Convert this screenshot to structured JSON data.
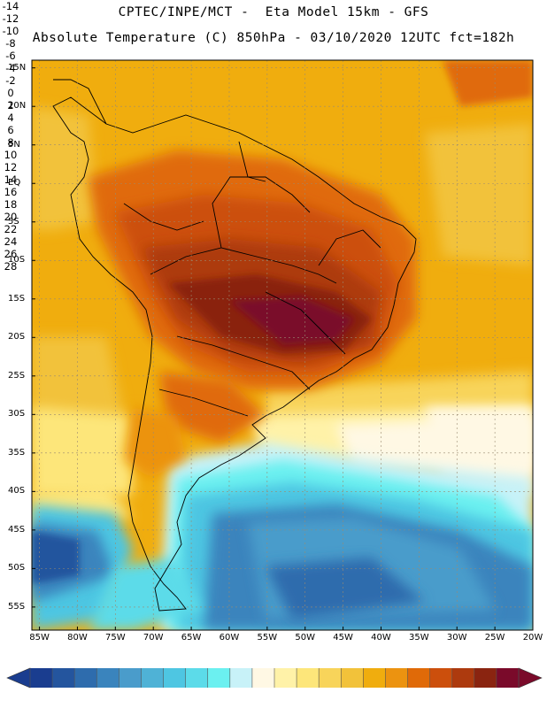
{
  "header": {
    "line1": "CPTEC/INPE/MCT -  Eta Model 15km - GFS",
    "line2": "Absolute Temperature (C) 850hPa - 03/10/2020 12UTC fct=182h"
  },
  "map": {
    "lat_labels": [
      "15N",
      "10N",
      "5N",
      "EQ",
      "5S",
      "10S",
      "15S",
      "20S",
      "25S",
      "30S",
      "35S",
      "40S",
      "45S",
      "50S",
      "55S"
    ],
    "lon_labels": [
      "85W",
      "80W",
      "75W",
      "70W",
      "65W",
      "60W",
      "55W",
      "50W",
      "45W",
      "40W",
      "35W",
      "30W",
      "25W",
      "20W"
    ],
    "extent": {
      "lon_min": -86,
      "lon_max": -20,
      "lat_min": -58,
      "lat_max": 16
    }
  },
  "colorbar": {
    "labels": [
      "-14",
      "-12",
      "-10",
      "-8",
      "-6",
      "-4",
      "-2",
      "0",
      "2",
      "4",
      "6",
      "8",
      "10",
      "12",
      "14",
      "16",
      "18",
      "20",
      "22",
      "24",
      "26",
      "28"
    ],
    "under_color": "#1a3d8f",
    "over_color": "#7a0a2a",
    "colors": [
      "#1a3d8f",
      "#24559e",
      "#2e6cad",
      "#3a84bd",
      "#4a9ccb",
      "#4fb2d6",
      "#4ec6e2",
      "#5cdbe9",
      "#6bf0f0",
      "#c8f2f8",
      "#fff8e4",
      "#fff2a8",
      "#fde67a",
      "#f8d45a",
      "#f2c23a",
      "#f0ad0e",
      "#ec9310",
      "#e06a08",
      "#cc4f0c",
      "#ad3a0e",
      "#8a2410",
      "#7a0a2a"
    ]
  }
}
